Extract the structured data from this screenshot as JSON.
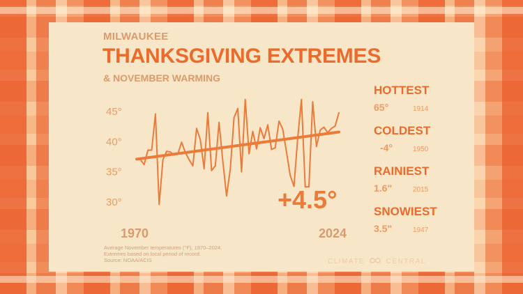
{
  "header": {
    "location": "MILWAUKEE",
    "title": "THANKSGIVING EXTREMES",
    "subtitle": "& NOVEMBER WARMING"
  },
  "stats": [
    {
      "label": "HOTTEST",
      "value": "65°",
      "year": "1914"
    },
    {
      "label": "COLDEST",
      "value": "-4°",
      "year": "1950"
    },
    {
      "label": "RAINIEST",
      "value": "1.6\"",
      "year": "2015"
    },
    {
      "label": "SNOWIEST",
      "value": "3.5\"",
      "year": "1947"
    }
  ],
  "footnote": {
    "line1": "Average November temperatures (°F), 1970–2024.",
    "line2": "Extremes based on local period of record.",
    "line3": "Source: NOAA/ACIS"
  },
  "brand": {
    "left": "CLIMATE",
    "right": "CENTRAL"
  },
  "colors": {
    "accent": "#ea6b2c",
    "line": "#ec7a38",
    "muted": "#d99b6e",
    "panel": "#f8e6c9"
  },
  "chart_data": {
    "type": "line",
    "x": [
      1970,
      1971,
      1972,
      1973,
      1974,
      1975,
      1976,
      1977,
      1978,
      1979,
      1980,
      1981,
      1982,
      1983,
      1984,
      1985,
      1986,
      1987,
      1988,
      1989,
      1990,
      1991,
      1992,
      1993,
      1994,
      1995,
      1996,
      1997,
      1998,
      1999,
      2000,
      2001,
      2002,
      2003,
      2004,
      2005,
      2006,
      2007,
      2008,
      2009,
      2010,
      2011,
      2012,
      2013,
      2014,
      2015,
      2016,
      2017,
      2018,
      2019,
      2020,
      2021,
      2022,
      2023,
      2024
    ],
    "values": [
      37.2,
      37.0,
      36.2,
      38.6,
      38.6,
      44.6,
      29.6,
      37.0,
      38.4,
      38.3,
      37.8,
      38.0,
      39.9,
      38.2,
      37.0,
      36.0,
      42.2,
      40.3,
      35.5,
      44.8,
      35.2,
      36.0,
      43.2,
      36.8,
      31.0,
      35.5,
      44.0,
      45.5,
      35.0,
      47.0,
      38.0,
      41.7,
      38.8,
      42.3,
      40.5,
      42.8,
      38.7,
      39.0,
      43.4,
      42.1,
      38.3,
      34.4,
      32.6,
      40.6,
      47.0,
      32.5,
      32.5,
      46.6,
      39.2,
      41.9,
      42.4,
      41.5,
      42.2,
      42.6,
      44.8
    ],
    "trend": {
      "start": 37.1,
      "end": 41.6
    },
    "annotation": "+4.5°",
    "x_labels": [
      "1970",
      "2024"
    ],
    "y_ticks": [
      30,
      35,
      40,
      45
    ],
    "y_tick_labels": [
      "30°",
      "35°",
      "40°",
      "45°"
    ],
    "ylim": [
      28.5,
      48
    ],
    "grid": false
  }
}
